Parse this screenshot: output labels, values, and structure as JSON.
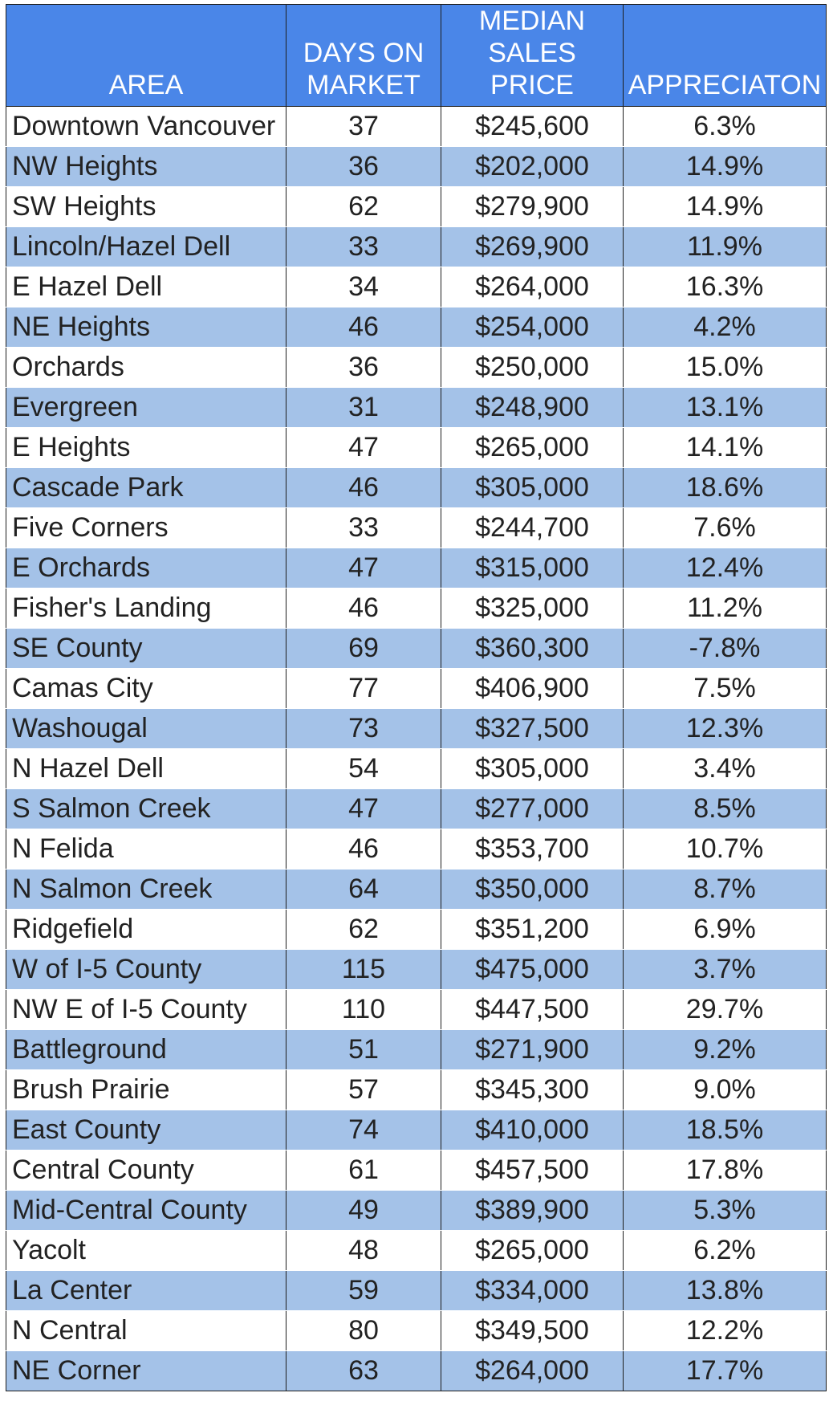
{
  "chart_data": {
    "type": "table",
    "columns": [
      "AREA",
      "DAYS ON\nMARKET",
      "MEDIAN\nSALES PRICE",
      "APPRECIATON"
    ],
    "rows": [
      [
        "Downtown Vancouver",
        "37",
        "$245,600",
        "6.3%"
      ],
      [
        "NW Heights",
        "36",
        "$202,000",
        "14.9%"
      ],
      [
        "SW Heights",
        "62",
        "$279,900",
        "14.9%"
      ],
      [
        "Lincoln/Hazel Dell",
        "33",
        "$269,900",
        "11.9%"
      ],
      [
        "E Hazel Dell",
        "34",
        "$264,000",
        "16.3%"
      ],
      [
        "NE Heights",
        "46",
        "$254,000",
        "4.2%"
      ],
      [
        "Orchards",
        "36",
        "$250,000",
        "15.0%"
      ],
      [
        "Evergreen",
        "31",
        "$248,900",
        "13.1%"
      ],
      [
        "E Heights",
        "47",
        "$265,000",
        "14.1%"
      ],
      [
        "Cascade Park",
        "46",
        "$305,000",
        "18.6%"
      ],
      [
        "Five Corners",
        "33",
        "$244,700",
        "7.6%"
      ],
      [
        "E Orchards",
        "47",
        "$315,000",
        "12.4%"
      ],
      [
        "Fisher's Landing",
        "46",
        "$325,000",
        "11.2%"
      ],
      [
        "SE County",
        "69",
        "$360,300",
        "-7.8%"
      ],
      [
        "Camas City",
        "77",
        "$406,900",
        "7.5%"
      ],
      [
        "Washougal",
        "73",
        "$327,500",
        "12.3%"
      ],
      [
        "N Hazel Dell",
        "54",
        "$305,000",
        "3.4%"
      ],
      [
        "S Salmon Creek",
        "47",
        "$277,000",
        "8.5%"
      ],
      [
        "N Felida",
        "46",
        "$353,700",
        "10.7%"
      ],
      [
        "N Salmon Creek",
        "64",
        "$350,000",
        "8.7%"
      ],
      [
        "Ridgefield",
        "62",
        "$351,200",
        "6.9%"
      ],
      [
        "W of I-5 County",
        "115",
        "$475,000",
        "3.7%"
      ],
      [
        "NW E of I-5 County",
        "110",
        "$447,500",
        "29.7%"
      ],
      [
        "Battleground",
        "51",
        "$271,900",
        "9.2%"
      ],
      [
        "Brush Prairie",
        "57",
        "$345,300",
        "9.0%"
      ],
      [
        "East County",
        "74",
        "$410,000",
        "18.5%"
      ],
      [
        "Central County",
        "61",
        "$457,500",
        "17.8%"
      ],
      [
        "Mid-Central County",
        "49",
        "$389,900",
        "5.3%"
      ],
      [
        "Yacolt",
        "48",
        "$265,000",
        "6.2%"
      ],
      [
        "La Center",
        "59",
        "$334,000",
        "13.8%"
      ],
      [
        "N Central",
        "80",
        "$349,500",
        "12.2%"
      ],
      [
        "NE Corner",
        "63",
        "$264,000",
        "17.7%"
      ]
    ]
  },
  "colors": {
    "header_background": "#4a86e8",
    "header_text": "#ffffff",
    "band_light": "#ffffff",
    "band_blue": "#a4c2e8",
    "grid_line": "#1e1e1e",
    "cell_text": "#222222"
  }
}
